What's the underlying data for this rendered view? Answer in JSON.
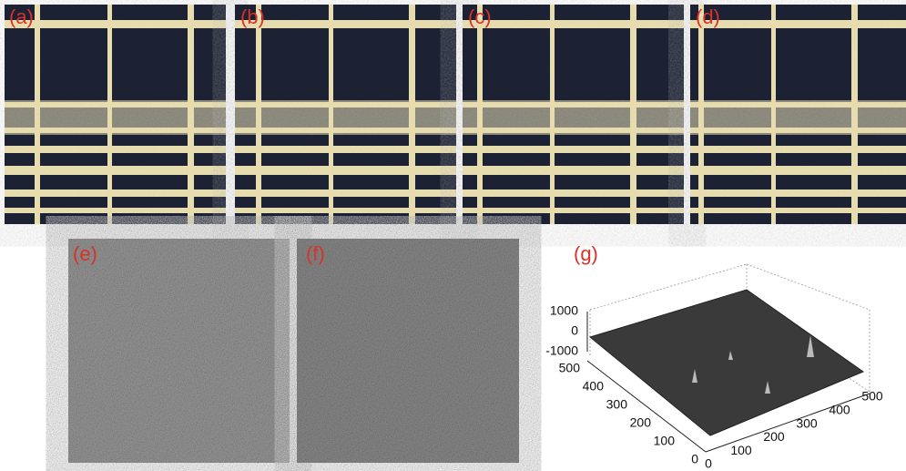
{
  "panels": [
    "(a)",
    "(b)",
    "(c)",
    "(d)",
    "(e)",
    "(f)",
    "(g)"
  ],
  "surface_plot": {
    "zticks": [
      1000,
      0,
      -1000
    ],
    "yticks": [
      500,
      400,
      300,
      200,
      100,
      0
    ],
    "xticks": [
      0,
      100,
      200,
      300,
      400,
      500
    ]
  }
}
